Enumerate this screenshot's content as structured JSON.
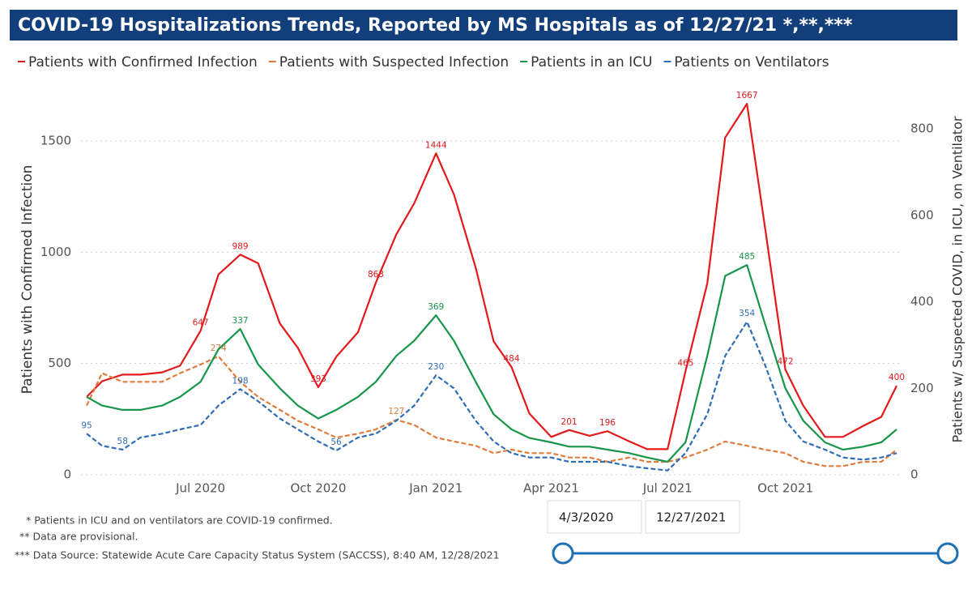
{
  "chart_data": {
    "type": "line",
    "title": "COVID-19 Hospitalizations Trends, Reported by MS Hospitals as of 12/27/21 *,**,***",
    "ylabel": "Patients with Confirmed Infection",
    "y2label": "Patients w/ Suspected COVID, in ICU, on Ventilator",
    "x": [
      "2020-04-03",
      "2020-04-15",
      "2020-05-01",
      "2020-05-15",
      "2020-06-01",
      "2020-06-15",
      "2020-07-01",
      "2020-07-15",
      "2020-08-01",
      "2020-08-15",
      "2020-09-01",
      "2020-09-15",
      "2020-10-01",
      "2020-10-15",
      "2020-11-01",
      "2020-11-15",
      "2020-12-01",
      "2020-12-15",
      "2021-01-01",
      "2021-01-15",
      "2021-02-01",
      "2021-02-15",
      "2021-03-01",
      "2021-03-15",
      "2021-04-01",
      "2021-04-15",
      "2021-05-01",
      "2021-05-15",
      "2021-06-01",
      "2021-06-15",
      "2021-07-01",
      "2021-07-15",
      "2021-08-01",
      "2021-08-15",
      "2021-09-01",
      "2021-09-15",
      "2021-10-01",
      "2021-10-15",
      "2021-11-01",
      "2021-11-15",
      "2021-12-01",
      "2021-12-15",
      "2021-12-27"
    ],
    "xlim": [
      "2020-04-03",
      "2021-12-27"
    ],
    "xticks": [
      {
        "value": "2020-07-01",
        "label": "Jul 2020"
      },
      {
        "value": "2020-10-01",
        "label": "Oct 2020"
      },
      {
        "value": "2021-01-01",
        "label": "Jan 2021"
      },
      {
        "value": "2021-04-01",
        "label": "Apr 2021"
      },
      {
        "value": "2021-07-01",
        "label": "Jul 2021"
      },
      {
        "value": "2021-10-01",
        "label": "Oct 2021"
      }
    ],
    "ylim": [
      0,
      1700
    ],
    "yticks": [
      0,
      500,
      1000,
      1500
    ],
    "y2lim": [
      0,
      875
    ],
    "y2ticks": [
      0,
      200,
      400,
      600,
      800
    ],
    "grid": true,
    "series": [
      {
        "name": "Patients with Confirmed Infection",
        "color": "#e3191c",
        "dashed": false,
        "values": [
          350,
          420,
          450,
          450,
          460,
          490,
          647,
          900,
          989,
          950,
          680,
          570,
          393,
          530,
          640,
          863,
          1080,
          1220,
          1444,
          1260,
          930,
          600,
          484,
          275,
          170,
          201,
          175,
          196,
          150,
          115,
          115,
          465,
          860,
          1515,
          1667,
          1115,
          472,
          310,
          170,
          170,
          220,
          260,
          400
        ],
        "value_labels": [
          null,
          null,
          null,
          null,
          null,
          null,
          "647",
          null,
          "989",
          null,
          null,
          null,
          "393",
          null,
          null,
          "863",
          null,
          null,
          "1444",
          null,
          null,
          null,
          "484",
          null,
          null,
          "201",
          null,
          "196",
          null,
          null,
          null,
          "465",
          null,
          null,
          "1667",
          null,
          "472",
          null,
          null,
          null,
          null,
          null,
          "400"
        ]
      },
      {
        "name": "Patients with Suspected Infection",
        "color": "#e07b3c",
        "dashed": true,
        "axis": "y2",
        "values": [
          160,
          235,
          215,
          215,
          215,
          235,
          255,
          274,
          215,
          180,
          150,
          125,
          105,
          86,
          95,
          105,
          127,
          115,
          86,
          77,
          67,
          50,
          58,
          50,
          50,
          40,
          40,
          30,
          40,
          30,
          30,
          40,
          58,
          77,
          67,
          58,
          50,
          30,
          20,
          20,
          30,
          30,
          58
        ],
        "value_labels": [
          null,
          null,
          null,
          null,
          null,
          null,
          null,
          "274",
          null,
          null,
          null,
          null,
          null,
          null,
          null,
          null,
          "127",
          null,
          null,
          null,
          null,
          null,
          null,
          null,
          null,
          null,
          null,
          null,
          null,
          null,
          null,
          null,
          null,
          null,
          null,
          null,
          null,
          null,
          null,
          null,
          null,
          null,
          null
        ]
      },
      {
        "name": "Patients in an ICU",
        "color": "#17964a",
        "dashed": false,
        "axis": "y2",
        "values": [
          180,
          160,
          150,
          150,
          160,
          180,
          215,
          290,
          337,
          255,
          200,
          160,
          130,
          150,
          180,
          215,
          275,
          310,
          369,
          310,
          215,
          140,
          105,
          85,
          75,
          65,
          65,
          58,
          50,
          40,
          30,
          75,
          275,
          460,
          485,
          350,
          200,
          125,
          75,
          58,
          65,
          75,
          105
        ],
        "value_labels": [
          null,
          null,
          null,
          null,
          null,
          null,
          null,
          null,
          "337",
          null,
          null,
          null,
          null,
          null,
          null,
          null,
          null,
          null,
          "369",
          null,
          null,
          null,
          null,
          null,
          null,
          null,
          null,
          null,
          null,
          null,
          null,
          null,
          null,
          null,
          "485",
          null,
          null,
          null,
          null,
          null,
          null,
          null,
          null
        ]
      },
      {
        "name": "Patients on Ventilators",
        "color": "#2f6db5",
        "dashed": true,
        "axis": "y2",
        "values": [
          95,
          67,
          58,
          86,
          95,
          105,
          115,
          160,
          198,
          170,
          130,
          105,
          77,
          56,
          86,
          95,
          125,
          160,
          230,
          200,
          125,
          77,
          50,
          40,
          40,
          30,
          30,
          30,
          20,
          15,
          10,
          50,
          140,
          275,
          354,
          255,
          125,
          77,
          58,
          40,
          35,
          40,
          50
        ],
        "value_labels": [
          "95",
          null,
          "58",
          null,
          null,
          null,
          null,
          null,
          "198",
          null,
          null,
          null,
          null,
          "56",
          null,
          null,
          null,
          null,
          "230",
          null,
          null,
          null,
          null,
          null,
          null,
          null,
          null,
          null,
          null,
          null,
          null,
          null,
          null,
          null,
          "354",
          null,
          null,
          null,
          null,
          null,
          null,
          null,
          null
        ]
      }
    ]
  },
  "notes": [
    "* Patients in ICU and on ventilators are COVID-19 confirmed.",
    "** Data are provisional.",
    "*** Data Source: Statewide Acute Care Capacity Status System (SACCSS), 8:40 AM, 12/28/2021"
  ],
  "slider": {
    "start": "4/3/2020",
    "end": "12/27/2021"
  }
}
